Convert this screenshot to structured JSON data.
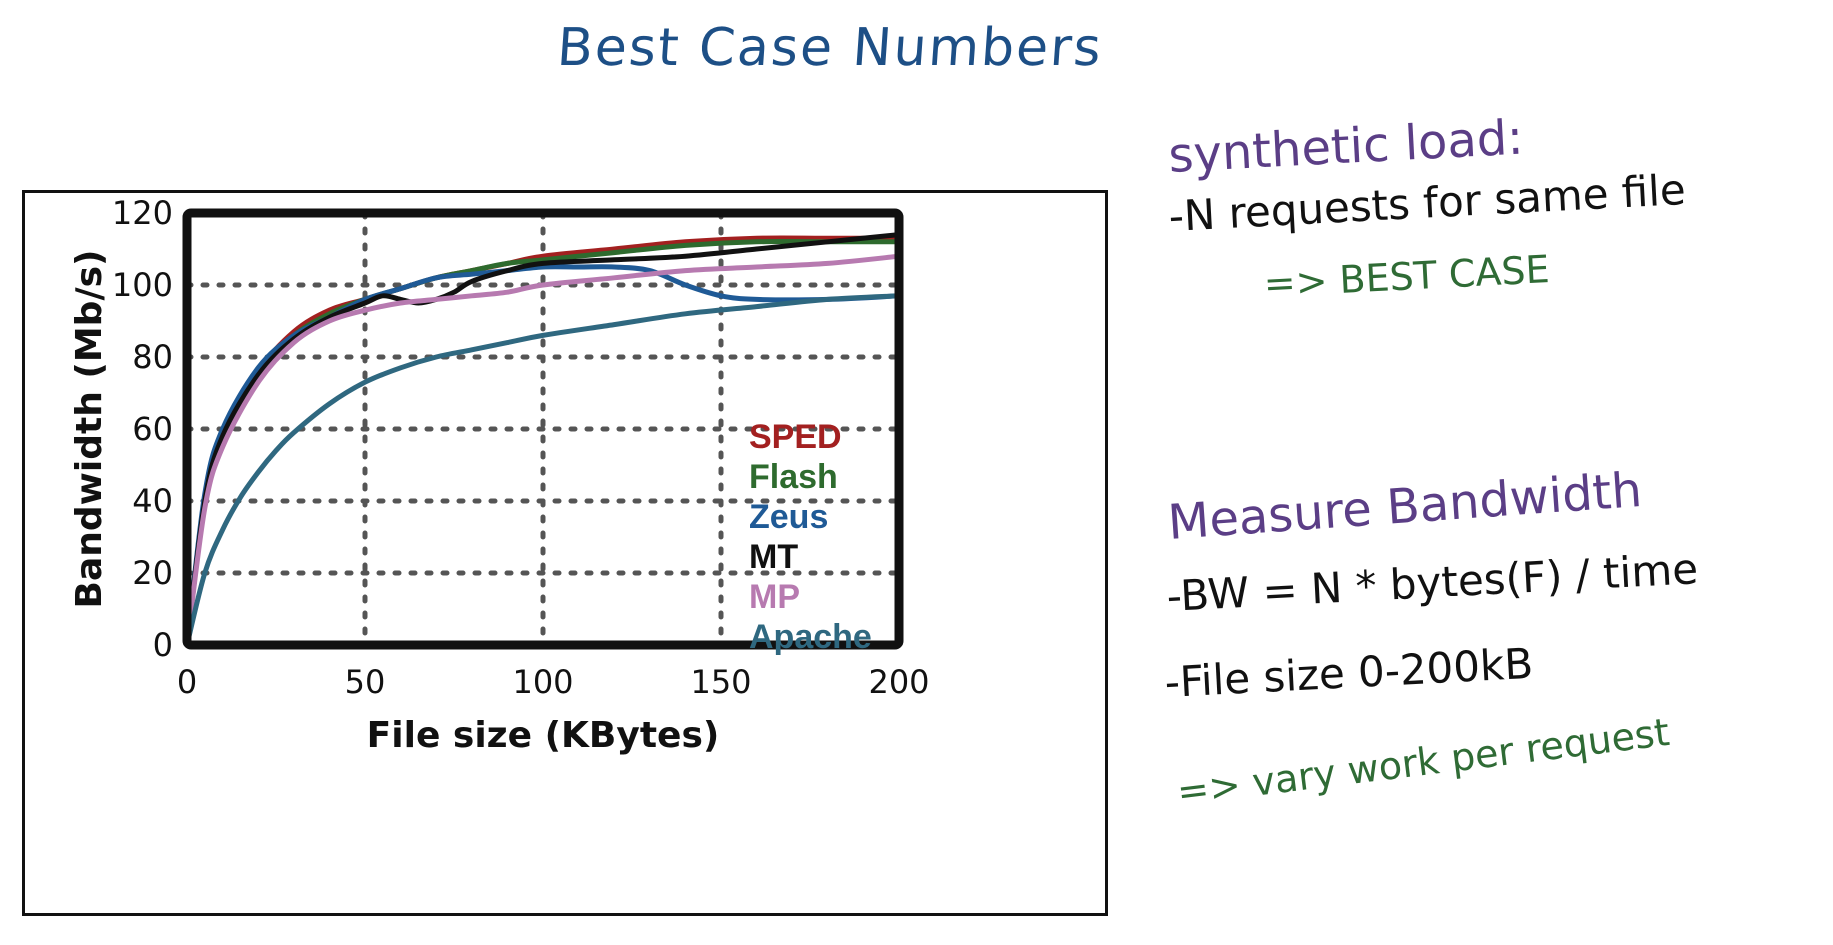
{
  "page_title": "Best Case Numbers",
  "notes": {
    "synthetic_heading": "synthetic load:",
    "synthetic_line": "-N requests for same file",
    "synthetic_result": "=> BEST CASE",
    "measure_heading": "Measure Bandwidth",
    "measure_line1": "-BW = N * bytes(F) / time",
    "measure_line2": "-File size 0-200kB",
    "measure_result": "=> vary work per request"
  },
  "chart_data": {
    "type": "line",
    "xlabel": "File size (KBytes)",
    "ylabel": "Bandwidth (Mb/s)",
    "xlim": [
      0,
      200
    ],
    "ylim": [
      0,
      120
    ],
    "xticks": [
      0,
      50,
      100,
      150,
      200
    ],
    "yticks": [
      0,
      20,
      40,
      60,
      80,
      100,
      120
    ],
    "grid": true,
    "legend_position": "bottom-right inside plot",
    "series": [
      {
        "name": "SPED",
        "color": "#a32020",
        "x": [
          0,
          5,
          10,
          20,
          30,
          40,
          50,
          60,
          70,
          80,
          90,
          100,
          120,
          140,
          160,
          180,
          200
        ],
        "y": [
          0,
          40,
          58,
          76,
          87,
          93,
          96,
          99,
          102,
          104,
          106,
          108,
          110,
          112,
          113,
          113,
          113
        ]
      },
      {
        "name": "Flash",
        "color": "#2e6b2e",
        "x": [
          0,
          5,
          10,
          20,
          30,
          40,
          50,
          60,
          70,
          80,
          90,
          100,
          120,
          140,
          160,
          180,
          200
        ],
        "y": [
          0,
          40,
          58,
          76,
          86,
          92,
          96,
          99,
          102,
          104,
          106,
          107,
          109,
          111,
          112,
          112,
          112
        ]
      },
      {
        "name": "Zeus",
        "color": "#1f5a96",
        "x": [
          0,
          5,
          10,
          20,
          30,
          40,
          50,
          60,
          70,
          80,
          90,
          100,
          110,
          120,
          130,
          140,
          150,
          160,
          180,
          200
        ],
        "y": [
          0,
          42,
          60,
          77,
          86,
          91,
          96,
          99,
          102,
          103,
          104,
          105,
          105,
          105,
          104,
          100,
          97,
          96,
          96,
          97
        ]
      },
      {
        "name": "MT",
        "color": "#111111",
        "x": [
          0,
          5,
          10,
          20,
          30,
          40,
          50,
          55,
          60,
          65,
          70,
          75,
          80,
          90,
          100,
          120,
          140,
          160,
          180,
          200
        ],
        "y": [
          0,
          40,
          58,
          75,
          85,
          91,
          95,
          97,
          96,
          95,
          96,
          98,
          101,
          104,
          106,
          107,
          108,
          110,
          112,
          114
        ]
      },
      {
        "name": "MP",
        "color": "#b77ab0",
        "x": [
          0,
          5,
          10,
          20,
          30,
          40,
          50,
          60,
          70,
          80,
          90,
          100,
          120,
          140,
          160,
          180,
          200
        ],
        "y": [
          0,
          38,
          55,
          73,
          84,
          90,
          93,
          95,
          96,
          97,
          98,
          100,
          102,
          104,
          105,
          106,
          108
        ]
      },
      {
        "name": "Apache",
        "color": "#2f6880",
        "x": [
          0,
          5,
          10,
          15,
          20,
          25,
          30,
          40,
          50,
          60,
          70,
          80,
          90,
          100,
          120,
          140,
          160,
          180,
          200
        ],
        "y": [
          0,
          20,
          32,
          41,
          48,
          54,
          59,
          67,
          73,
          77,
          80,
          82,
          84,
          86,
          89,
          92,
          94,
          96,
          97
        ]
      }
    ]
  }
}
